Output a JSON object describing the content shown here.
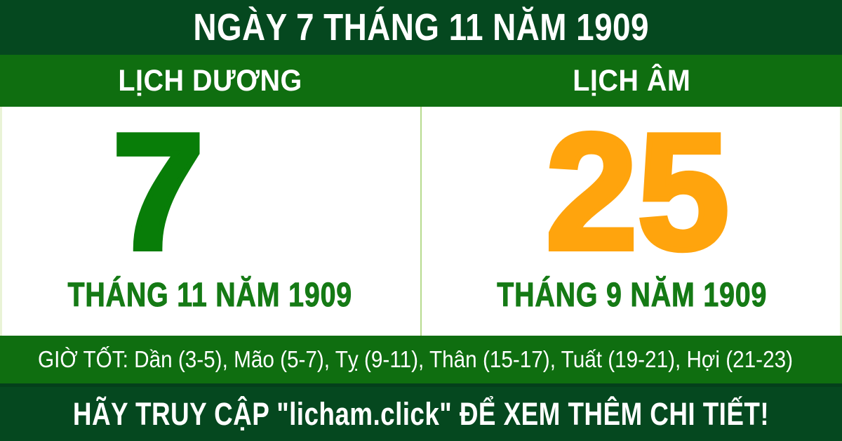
{
  "header": {
    "title": "NGÀY 7 THÁNG 11 NĂM 1909"
  },
  "tabs": [
    {
      "label": "LỊCH DƯƠNG"
    },
    {
      "label": "LỊCH ÂM"
    }
  ],
  "calendar": {
    "solar": {
      "day": "7",
      "month_year": "THÁNG 11 NĂM 1909"
    },
    "lunar": {
      "day": "25",
      "month_year": "THÁNG 9 NĂM 1909"
    }
  },
  "good_hours": {
    "text": "GIỜ TỐT: Dần (3-5), Mão (5-7), Tỵ (9-11), Thân (15-17), Tuất (19-21), Hợi (21-23)"
  },
  "footer": {
    "message": "HÃY TRUY CẬP \"licham.click\" ĐỂ XEM THÊM CHI TIẾT!"
  },
  "colors": {
    "dark_green": "#05481f",
    "medium_green": "#0f6e10",
    "solar_day_green": "#087d08",
    "month_green": "#157a15",
    "lunar_day_orange": "#ffa40d",
    "divider_green": "#b7db8f",
    "text_white": "#ffffff"
  }
}
